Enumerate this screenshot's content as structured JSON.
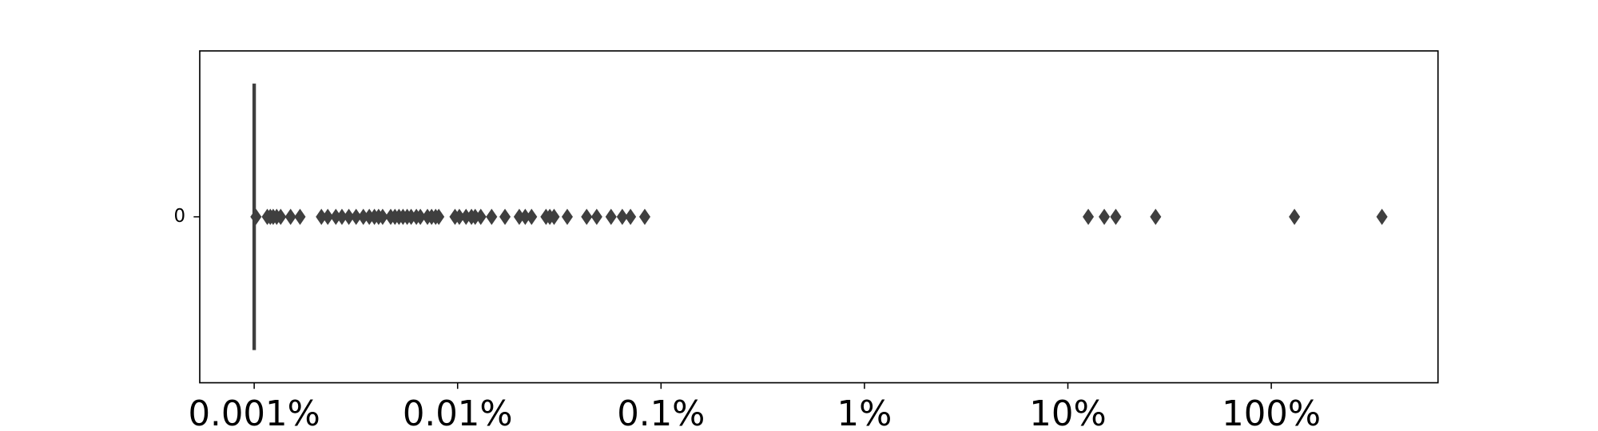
{
  "chart_data": {
    "type": "box",
    "orientation": "horizontal",
    "log_scale": true,
    "categories": [
      "0"
    ],
    "color": "#3f3f3f",
    "boxes": [
      {
        "whislo": 0.001,
        "q1": 0.001,
        "median": 0.001,
        "q3": 0.001,
        "whishi": 0.001,
        "fliers": [
          0.00102,
          0.00116,
          0.0012,
          0.00124,
          0.00129,
          0.00135,
          0.00151,
          0.00168,
          0.00214,
          0.0023,
          0.00252,
          0.0027,
          0.00292,
          0.00317,
          0.00344,
          0.00368,
          0.0039,
          0.00409,
          0.00428,
          0.00469,
          0.00492,
          0.00515,
          0.00539,
          0.00565,
          0.00591,
          0.00627,
          0.00656,
          0.00711,
          0.00745,
          0.0078,
          0.00808,
          0.00971,
          0.0102,
          0.011,
          0.0117,
          0.0122,
          0.013,
          0.0147,
          0.0171,
          0.0201,
          0.0215,
          0.0231,
          0.0272,
          0.0284,
          0.0298,
          0.0346,
          0.0431,
          0.0483,
          0.0568,
          0.0645,
          0.0708,
          0.0832,
          12.6,
          15.1,
          17.2,
          27.0,
          130,
          350
        ]
      }
    ],
    "xlim": [
      0.00054,
      660
    ],
    "xticks": [
      {
        "value": 0.001,
        "label": "0.001%"
      },
      {
        "value": 0.01,
        "label": "0.01%"
      },
      {
        "value": 0.1,
        "label": "0.1%"
      },
      {
        "value": 1,
        "label": "1%"
      },
      {
        "value": 10,
        "label": "10%"
      },
      {
        "value": 100,
        "label": "100%"
      }
    ]
  }
}
